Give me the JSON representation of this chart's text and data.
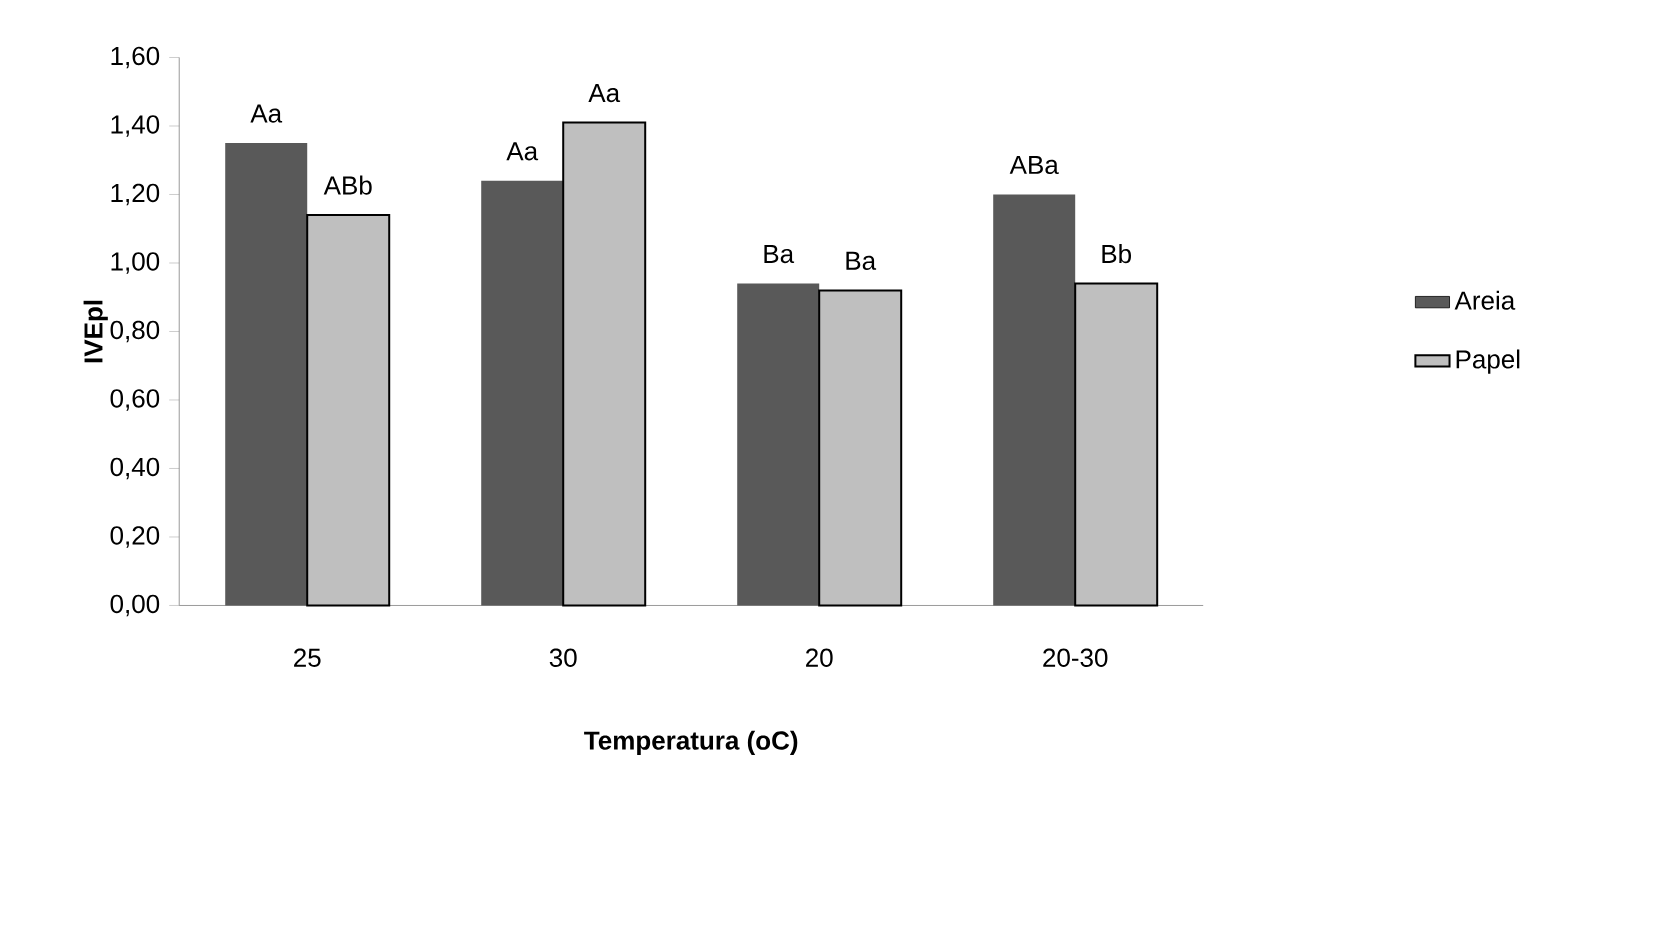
{
  "chart_data": {
    "type": "bar",
    "xlabel": "Temperatura (oC)",
    "ylabel": "IVEpl",
    "categories": [
      "25",
      "30",
      "20",
      "20-30"
    ],
    "series": [
      {
        "name": "Areia",
        "color": "#595959",
        "values": [
          1.35,
          1.24,
          0.94,
          1.2
        ],
        "value_labels": [
          "Aa",
          "Aa",
          "Ba",
          "ABa"
        ]
      },
      {
        "name": "Papel",
        "color": "#bfbfbf",
        "values": [
          1.14,
          1.41,
          0.92,
          0.94
        ],
        "value_labels": [
          "ABb",
          "Aa",
          "Ba",
          "Bb"
        ]
      }
    ],
    "ylim": [
      0,
      1.6
    ],
    "yticks": [
      {
        "value": 0,
        "label": "0,00"
      },
      {
        "value": 0.2,
        "label": "0,20"
      },
      {
        "value": 0.4,
        "label": "0,40"
      },
      {
        "value": 0.6,
        "label": "0,60"
      },
      {
        "value": 0.8,
        "label": "0,80"
      },
      {
        "value": 1.0,
        "label": "1,00"
      },
      {
        "value": 1.2,
        "label": "1,20"
      },
      {
        "value": 1.4,
        "label": "1,40"
      },
      {
        "value": 1.6,
        "label": "1,60"
      }
    ],
    "grid": false,
    "legend": "right"
  }
}
